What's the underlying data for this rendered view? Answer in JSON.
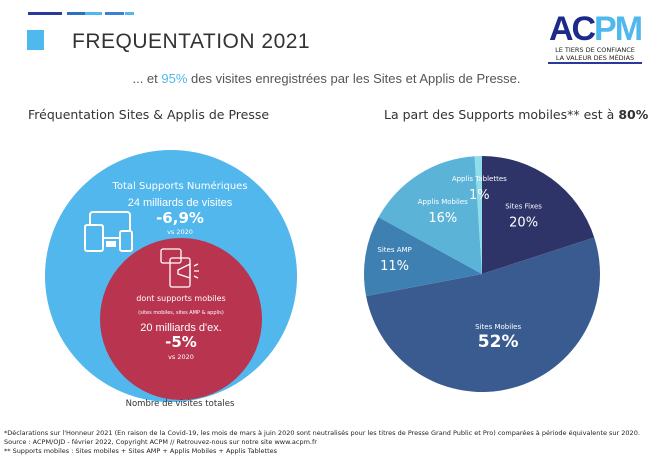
{
  "header": {
    "title": "FREQUENTATION 2021",
    "subtitle_pre": "... et ",
    "subtitle_highlight": "95%",
    "subtitle_post": " des visites enregistrées par les Sites et Applis de Presse.",
    "accent": "#4fb8ec"
  },
  "logo": {
    "text": "ACPM",
    "tagline1": "LE TIERS DE CONFIANCE",
    "tagline2": "LA VALEUR DES MÉDIAS"
  },
  "left": {
    "heading": "Fréquentation Sites & Applis de Presse",
    "outer": {
      "label": "Total Supports Numériques",
      "value": "24 milliards de visites",
      "change": "-6,9%",
      "vs": "vs 2020",
      "color": "#52b7ec"
    },
    "inner": {
      "label": "dont supports mobiles",
      "sublabel": "(sites mobiles, sites AMP & applis)",
      "value": "20 milliards d'ex.",
      "change": "-5%",
      "vs": "vs 2020",
      "color": "#b8344f"
    },
    "caption": "Nombre de visites totales"
  },
  "right": {
    "heading_pre": "La part des Supports mobiles** est à ",
    "heading_bold": "80%"
  },
  "chart_data": {
    "type": "pie",
    "title": "La part des Supports mobiles** est à 80%",
    "slices": [
      {
        "name": "Sites Fixes",
        "value": 20,
        "label": "20%",
        "color": "#2e3468"
      },
      {
        "name": "Sites Mobiles",
        "value": 52,
        "label": "52%",
        "color": "#3a5b90"
      },
      {
        "name": "Sites AMP",
        "value": 11,
        "label": "11%",
        "color": "#3f80b2"
      },
      {
        "name": "Applis Mobiles",
        "value": 16,
        "label": "16%",
        "color": "#5cb3d8"
      },
      {
        "name": "Applis Tablettes",
        "value": 1,
        "label": "1%",
        "color": "#8edde9"
      }
    ]
  },
  "footer": {
    "line1": "*Déclarations sur l'Honneur 2021 (En raison de la Covid-19, les mois de mars à juin 2020 sont neutralisés pour les titres de Presse Grand Public et Pro) comparées à période équivalente sur 2020.",
    "line2": "Source : ACPM/OJD - février 2022, Copyright ACPM // Retrouvez-nous sur notre site www.acpm.fr",
    "line3": "** Supports mobiles : Sites mobiles + Sites AMP + Applis Mobiles + Applis Tablettes"
  }
}
